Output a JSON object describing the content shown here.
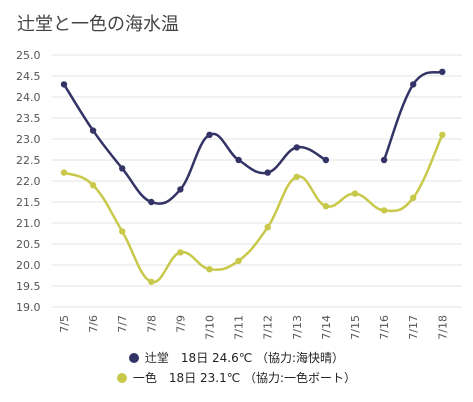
{
  "chart_data": {
    "type": "line",
    "title": "辻堂と一色の海水温",
    "categories": [
      "7/5",
      "7/6",
      "7/7",
      "7/8",
      "7/9",
      "7/10",
      "7/11",
      "7/12",
      "7/13",
      "7/14",
      "7/15",
      "7/16",
      "7/17",
      "7/18"
    ],
    "y_ticks": [
      "25.0",
      "24.5",
      "24.0",
      "23.5",
      "23.0",
      "22.5",
      "22.0",
      "21.5",
      "21.0",
      "20.5",
      "20.0",
      "19.5",
      "19.0"
    ],
    "ylim": [
      19.0,
      25.0
    ],
    "grid": true,
    "legend_position": "bottom",
    "series": [
      {
        "name": "辻堂",
        "legend_label": "辻堂　18日 24.6℃ （協力:海快晴）",
        "color": "#333366",
        "values": [
          24.3,
          23.2,
          22.3,
          21.5,
          21.8,
          23.1,
          22.5,
          22.2,
          22.8,
          22.5,
          null,
          22.5,
          24.3,
          24.6
        ]
      },
      {
        "name": "一色",
        "legend_label": "一色　18日 23.1℃ （協力:一色ボート）",
        "color": "#c8c84a",
        "values": [
          22.2,
          21.9,
          20.8,
          19.6,
          20.3,
          19.9,
          20.1,
          20.9,
          22.1,
          21.4,
          21.7,
          21.3,
          21.6,
          23.1
        ]
      }
    ]
  }
}
